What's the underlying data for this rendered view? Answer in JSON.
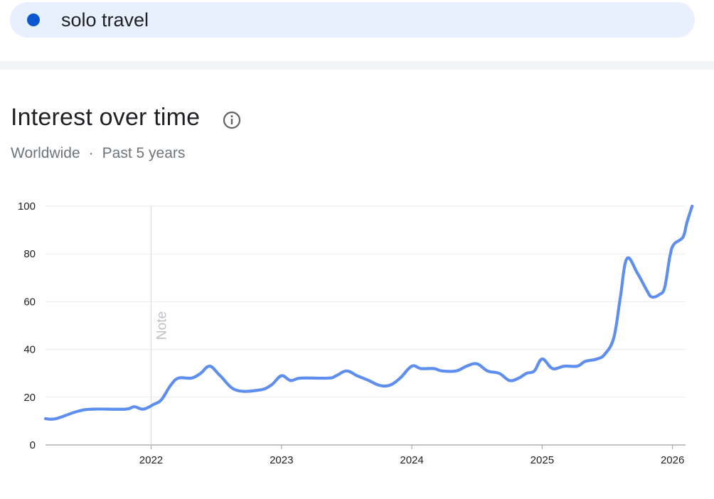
{
  "search_term": {
    "label": "solo travel",
    "color": "#0b57d0"
  },
  "card": {
    "title": "Interest over time",
    "info_icon": "info-icon",
    "region": "Worldwide",
    "separator": "·",
    "period": "Past 5 years",
    "note_label": "Note"
  },
  "chart_data": {
    "type": "line",
    "title": "Interest over time",
    "xlabel": "",
    "ylabel": "",
    "ylim": [
      0,
      100
    ],
    "xlim": [
      2021.19,
      2026.1
    ],
    "y_ticks": [
      0,
      20,
      40,
      60,
      80,
      100
    ],
    "x_ticks": [
      {
        "value": 2022,
        "label": "2022"
      },
      {
        "value": 2023,
        "label": "2023"
      },
      {
        "value": 2024,
        "label": "2024"
      },
      {
        "value": 2025,
        "label": "2025"
      },
      {
        "value": 2026,
        "label": "2026"
      }
    ],
    "grid": true,
    "line_color": "#5e8fee",
    "note_x": 2022,
    "series": [
      {
        "points": [
          [
            2021.19,
            11
          ],
          [
            2021.27,
            11
          ],
          [
            2021.43,
            14
          ],
          [
            2021.55,
            15
          ],
          [
            2021.8,
            15
          ],
          [
            2021.87,
            16
          ],
          [
            2021.94,
            15
          ],
          [
            2022.02,
            17
          ],
          [
            2022.08,
            19
          ],
          [
            2022.15,
            25
          ],
          [
            2022.21,
            28
          ],
          [
            2022.31,
            28
          ],
          [
            2022.38,
            30
          ],
          [
            2022.45,
            33
          ],
          [
            2022.53,
            29
          ],
          [
            2022.65,
            23
          ],
          [
            2022.83,
            23
          ],
          [
            2022.92,
            25
          ],
          [
            2023.0,
            29
          ],
          [
            2023.07,
            27
          ],
          [
            2023.15,
            28
          ],
          [
            2023.36,
            28
          ],
          [
            2023.42,
            29
          ],
          [
            2023.5,
            31
          ],
          [
            2023.58,
            29
          ],
          [
            2023.67,
            27
          ],
          [
            2023.75,
            25
          ],
          [
            2023.83,
            25
          ],
          [
            2023.91,
            28
          ],
          [
            2024.0,
            33
          ],
          [
            2024.07,
            32
          ],
          [
            2024.17,
            32
          ],
          [
            2024.23,
            31
          ],
          [
            2024.34,
            31
          ],
          [
            2024.42,
            33
          ],
          [
            2024.5,
            34
          ],
          [
            2024.58,
            31
          ],
          [
            2024.67,
            30
          ],
          [
            2024.75,
            27
          ],
          [
            2024.82,
            28
          ],
          [
            2024.88,
            30
          ],
          [
            2024.94,
            31
          ],
          [
            2025.0,
            36
          ],
          [
            2025.08,
            32
          ],
          [
            2025.17,
            33
          ],
          [
            2025.27,
            33
          ],
          [
            2025.33,
            35
          ],
          [
            2025.42,
            36
          ],
          [
            2025.48,
            38
          ],
          [
            2025.55,
            45
          ],
          [
            2025.6,
            62
          ],
          [
            2025.65,
            78
          ],
          [
            2025.73,
            72
          ],
          [
            2025.8,
            65
          ],
          [
            2025.84,
            62
          ],
          [
            2025.9,
            63
          ],
          [
            2025.94,
            66
          ],
          [
            2025.98,
            79
          ],
          [
            2026.01,
            84
          ],
          [
            2026.08,
            87
          ],
          [
            2026.11,
            93
          ],
          [
            2026.15,
            100
          ]
        ]
      }
    ]
  }
}
